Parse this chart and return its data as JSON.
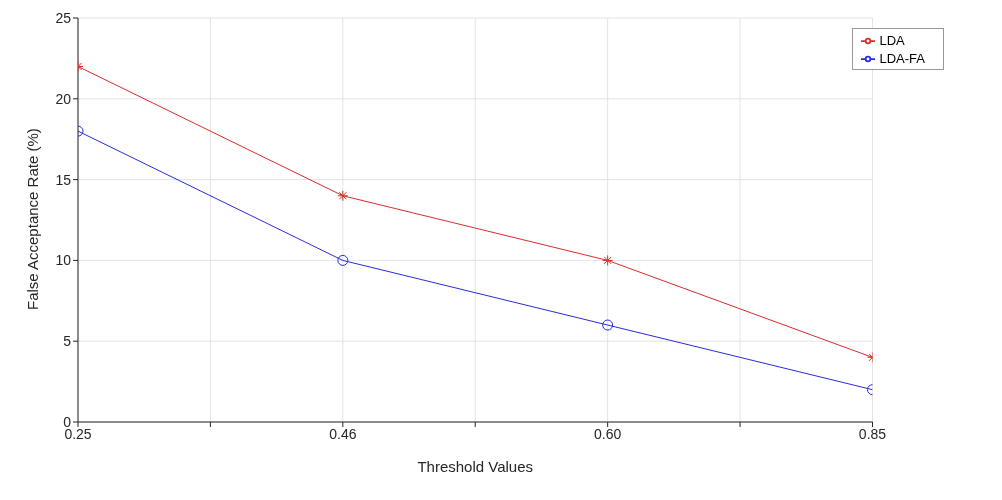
{
  "chart_data": {
    "type": "line",
    "xlabel": "Threshold Values",
    "ylabel": "False Acceptance Rate (%)",
    "categories": [
      "0.25",
      "0.46",
      "0.60",
      "0.85"
    ],
    "series": [
      {
        "name": "LDA",
        "color": "#e02a2a",
        "values": [
          22,
          14,
          10,
          4
        ],
        "marker": "cross"
      },
      {
        "name": "LDA-FA",
        "color": "#2a2ae0",
        "values": [
          18,
          10,
          6,
          2
        ],
        "marker": "circle"
      }
    ],
    "ylim": [
      0,
      25
    ],
    "yticks": [
      0,
      5,
      10,
      15,
      20,
      25
    ],
    "grid": true,
    "legend": "top right",
    "line_style": "solid"
  }
}
